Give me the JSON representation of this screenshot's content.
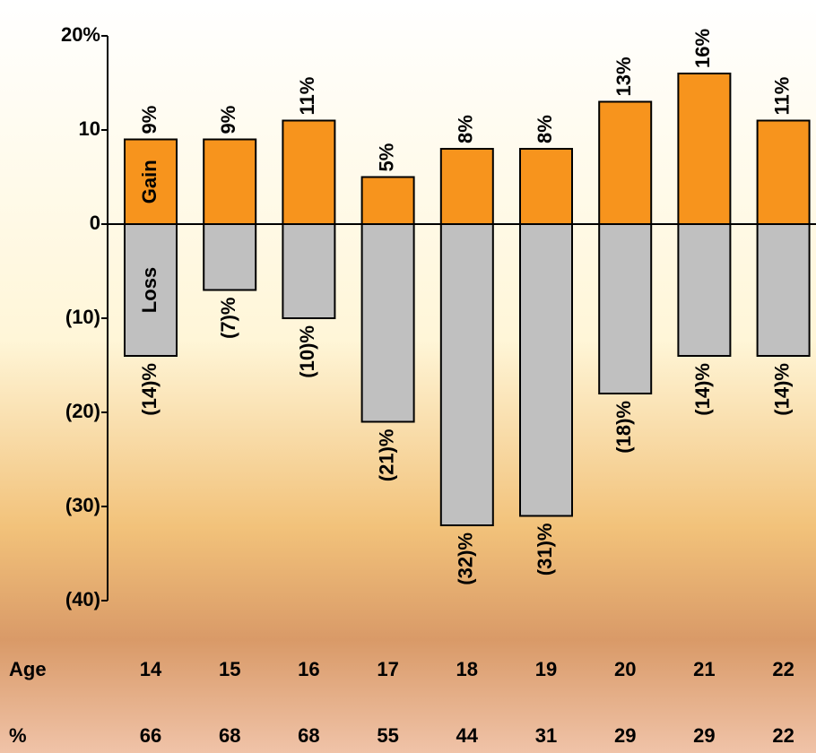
{
  "chart_data": {
    "type": "bar",
    "categories": [
      "14",
      "15",
      "16",
      "17",
      "18",
      "19",
      "20",
      "21",
      "22"
    ],
    "x_label": "Age",
    "series": [
      {
        "name": "Gain",
        "color": "#f7941d",
        "values": [
          9,
          9,
          11,
          5,
          8,
          8,
          13,
          16,
          11
        ],
        "value_labels": [
          "9%",
          "9%",
          "11%",
          "5%",
          "8%",
          "8%",
          "13%",
          "16%",
          "11%"
        ]
      },
      {
        "name": "Loss",
        "color": "#c0c0c0",
        "values": [
          -14,
          -7,
          -10,
          -21,
          -32,
          -31,
          -18,
          -14,
          -14
        ],
        "value_labels": [
          "(14)%",
          "(7)%",
          "(10)%",
          "(21)%",
          "(32)%",
          "(31)%",
          "(18)%",
          "(14)%",
          "(14)%"
        ]
      }
    ],
    "ylim": [
      -40,
      20
    ],
    "yticks": [
      {
        "value": -40,
        "label": "(40)"
      },
      {
        "value": -30,
        "label": "(30)"
      },
      {
        "value": -20,
        "label": "(20)"
      },
      {
        "value": -10,
        "label": "(10)"
      },
      0,
      10,
      {
        "value": 20,
        "label": "20%"
      }
    ],
    "row_label": "%",
    "row_values": [
      66,
      68,
      68,
      55,
      44,
      31,
      29,
      29,
      22
    ],
    "row_color": "#d9531e"
  }
}
